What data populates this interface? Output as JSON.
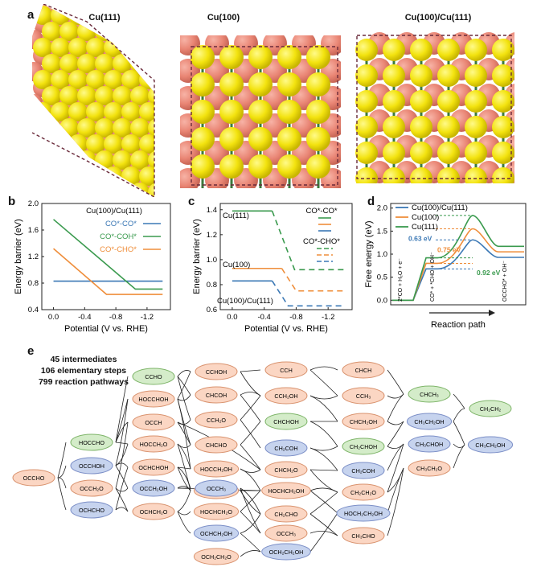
{
  "panel_a": {
    "letter": "a",
    "titles": [
      "Cu(111)",
      "Cu(100)",
      "Cu(100)/Cu(111)"
    ]
  },
  "panel_b": {
    "letter": "b",
    "title": "Cu(100)/Cu(111)",
    "ylabel": "Energy barrier (eV)",
    "xlabel": "Potential (V vs. RHE)",
    "xticks": [
      "0.0",
      "-0.4",
      "-0.8",
      "-1.2"
    ],
    "yticks": [
      "0.4",
      "0.8",
      "1.2",
      "1.6",
      "2.0"
    ],
    "legend": [
      "CO*-CO*",
      "CO*-COH*",
      "CO*-CHO*"
    ],
    "colors": {
      "blue": "#3b78b5",
      "green": "#3a9a4e",
      "orange": "#ef8e3b"
    }
  },
  "panel_c": {
    "letter": "c",
    "ylabel": "Energy barrier (eV)",
    "xlabel": "Potential (V vs. RHE)",
    "xticks": [
      "0.0",
      "-0.4",
      "-0.8",
      "-1.2"
    ],
    "yticks": [
      "0.6",
      "0.8",
      "1.0",
      "1.2",
      "1.4"
    ],
    "curve_labels": [
      "Cu(111)",
      "Cu(100)",
      "Cu(100)/Cu(111)"
    ],
    "legend": [
      "CO*-CO*",
      "CO*-CHO*"
    ]
  },
  "panel_d": {
    "letter": "d",
    "ylabel": "Free energy (eV)",
    "xlabel": "Reaction path",
    "yticks": [
      "0.0",
      "0.5",
      "1.0",
      "1.5",
      "2.0"
    ],
    "legend": [
      "Cu(100)/Cu(111)",
      "Cu(100)",
      "Cu(111)"
    ],
    "barriers": [
      "0.92 eV",
      "0.75 eV",
      "0.63 eV"
    ],
    "states": [
      "2*CO + H₂O + e⁻",
      "CO* + *CHO + OH⁻",
      "OCCHO* + OH⁻"
    ]
  },
  "chart_data": [
    {
      "type": "line",
      "title": "Cu(100)/Cu(111)",
      "xlabel": "Potential (V vs. RHE)",
      "ylabel": "Energy barrier (eV)",
      "xlim": [
        0.0,
        -1.4
      ],
      "ylim": [
        0.4,
        2.0
      ],
      "series": [
        {
          "name": "CO*-CO*",
          "x": [
            0.0,
            -1.4
          ],
          "values": [
            0.83,
            0.83
          ]
        },
        {
          "name": "CO*-COH*",
          "x": [
            0.0,
            -1.05,
            -1.4
          ],
          "values": [
            1.76,
            0.71,
            0.71
          ]
        },
        {
          "name": "CO*-CHO*",
          "x": [
            0.0,
            -0.68,
            -1.4
          ],
          "values": [
            1.32,
            0.63,
            0.63
          ]
        }
      ]
    },
    {
      "type": "line",
      "xlabel": "Potential (V vs. RHE)",
      "ylabel": "Energy barrier (eV)",
      "xlim": [
        0.0,
        -1.4
      ],
      "ylim": [
        0.6,
        1.45
      ],
      "series": [
        {
          "name": "Cu(111) CO*-CO*",
          "x": [
            0.0,
            -0.5
          ],
          "values": [
            1.39,
            1.39
          ]
        },
        {
          "name": "Cu(111) CO*-CHO*",
          "x": [
            -0.5,
            -0.78,
            -1.4
          ],
          "values": [
            1.39,
            0.92,
            0.92
          ]
        },
        {
          "name": "Cu(100) CO*-CO*",
          "x": [
            0.0,
            -0.62
          ],
          "values": [
            0.93,
            0.93
          ]
        },
        {
          "name": "Cu(100) CO*-CHO*",
          "x": [
            -0.62,
            -0.8,
            -1.4
          ],
          "values": [
            0.93,
            0.75,
            0.75
          ]
        },
        {
          "name": "Cu(100)/Cu(111) CO*-CO*",
          "x": [
            0.0,
            -0.5
          ],
          "values": [
            0.83,
            0.83
          ]
        },
        {
          "name": "Cu(100)/Cu(111) CO*-CHO*",
          "x": [
            -0.5,
            -0.7,
            -1.4
          ],
          "values": [
            0.83,
            0.63,
            0.63
          ]
        }
      ]
    },
    {
      "type": "line",
      "xlabel": "Reaction path",
      "ylabel": "Free energy (eV)",
      "ylim": [
        -0.1,
        2.1
      ],
      "series": [
        {
          "name": "Cu(100)/Cu(111)",
          "values": [
            0.0,
            0.68,
            1.31,
            0.93
          ]
        },
        {
          "name": "Cu(100)",
          "values": [
            0.0,
            0.8,
            1.55,
            1.05
          ]
        },
        {
          "name": "Cu(111)",
          "values": [
            0.0,
            0.92,
            1.84,
            1.17
          ]
        }
      ]
    }
  ],
  "panel_e": {
    "letter": "e",
    "stats": [
      "45 intermediates",
      "106 elementary steps",
      "799 reaction pathways"
    ],
    "nodes": [
      {
        "t": "CCHOH",
        "c": "orange"
      },
      {
        "t": "CCH",
        "c": "orange"
      },
      {
        "t": "CHCH",
        "c": "orange"
      },
      {
        "t": "CCHO",
        "c": "green"
      },
      {
        "t": "CHCOH",
        "c": "orange"
      },
      {
        "t": "CCH₂OH",
        "c": "orange"
      },
      {
        "t": "CCH₃",
        "c": "orange"
      },
      {
        "t": "HOCCHOH",
        "c": "orange"
      },
      {
        "t": "CCH₂O",
        "c": "orange"
      },
      {
        "t": "CHCHOH",
        "c": "green"
      },
      {
        "t": "CHCH₂OH",
        "c": "orange"
      },
      {
        "t": "CHCH₃",
        "c": "green"
      },
      {
        "t": "OCCH",
        "c": "orange"
      },
      {
        "t": "CHCHO",
        "c": "orange"
      },
      {
        "t": "CH₂COH",
        "c": "blue"
      },
      {
        "t": "CH₂CHOH",
        "c": "green"
      },
      {
        "t": "CH₃CH₂OH",
        "c": "blue"
      },
      {
        "t": "CH₂CH₂",
        "c": "green"
      },
      {
        "t": "HOCCHO",
        "c": "green"
      },
      {
        "t": "HOCCH₂O",
        "c": "orange"
      },
      {
        "t": "HOCCH₂OH",
        "c": "orange"
      },
      {
        "t": "CHCH₂O",
        "c": "orange"
      },
      {
        "t": "CH₂COH",
        "c": "blue"
      },
      {
        "t": "CH₃CHOH",
        "c": "blue"
      },
      {
        "t": "CH₃CH₂OH",
        "c": "blue"
      },
      {
        "t": "OCCHOH",
        "c": "blue"
      },
      {
        "t": "OCHCHOH",
        "c": "orange"
      },
      {
        "t": "HOCHCHOH",
        "c": "orange"
      },
      {
        "t": "HOCHCH₂OH",
        "c": "orange"
      },
      {
        "t": "CH₂CH₂O",
        "c": "orange"
      },
      {
        "t": "CH₃CH₂O",
        "c": "orange"
      },
      {
        "t": "OCCHO",
        "c": "orange"
      },
      {
        "t": "OCCH₂O",
        "c": "orange"
      },
      {
        "t": "OCCH₂OH",
        "c": "blue"
      },
      {
        "t": "OCCH₃",
        "c": "blue"
      },
      {
        "t": "CH₂CHO",
        "c": "orange"
      },
      {
        "t": "HOCH₂CH₂OH",
        "c": "blue"
      },
      {
        "t": "OCHCHO",
        "c": "blue"
      },
      {
        "t": "OCHCH₂O",
        "c": "orange"
      },
      {
        "t": "HOCHCH₂O",
        "c": "orange"
      },
      {
        "t": "OCCH₃",
        "c": "orange"
      },
      {
        "t": "CH₃CHO",
        "c": "orange"
      },
      {
        "t": "OCHCH₂OH",
        "c": "blue"
      },
      {
        "t": "OCH₂CH₂OH",
        "c": "blue"
      },
      {
        "t": "OCH₂CH₂O",
        "c": "orange"
      }
    ]
  }
}
